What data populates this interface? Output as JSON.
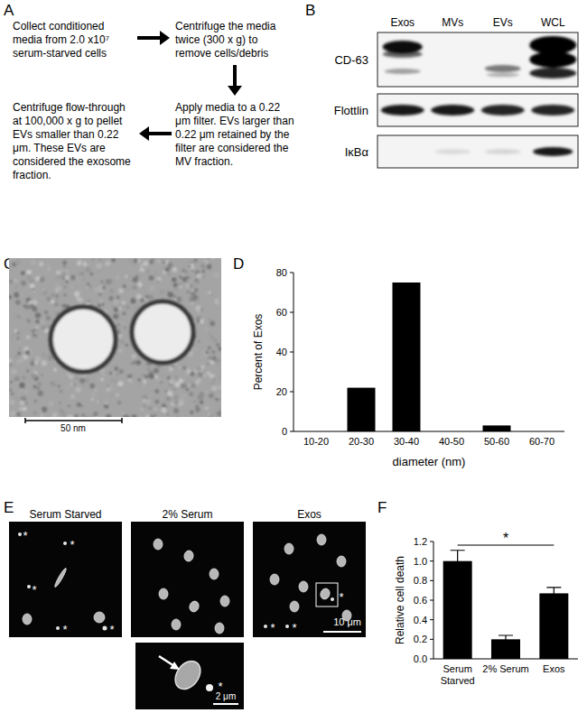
{
  "panel_labels": [
    "A",
    "B",
    "C",
    "D",
    "E",
    "F"
  ],
  "flowchart": {
    "steps": [
      "Collect conditioned media from 2.0 x10⁷ serum-starved cells",
      "Centrifuge the media twice (300 x g) to remove cells/debris",
      "Apply media to a 0.22 μm filter. EVs larger than 0.22 μm retained by the filter are considered the MV fraction.",
      "Centrifuge flow-through at 100,000 x g to pellet EVs smaller than 0.22 μm. These EVs are considered the exosome fraction."
    ]
  },
  "western_blot": {
    "lanes": [
      "Exos",
      "MVs",
      "EVs",
      "WCL"
    ],
    "rows": [
      "CD-63",
      "Flottlin",
      "IκBα"
    ]
  },
  "electron_micrograph": {
    "scale_bar": "50 nm"
  },
  "microscopy": {
    "images": [
      {
        "title": "Serum Starved",
        "asterisks": [
          "*",
          "*",
          "*",
          "*",
          "*"
        ]
      },
      {
        "title": "2% Serum"
      },
      {
        "title": "Exos",
        "asterisks": [
          "*",
          "*",
          "*"
        ],
        "scale_bar": "10 μm"
      }
    ],
    "inset": {
      "asterisks": [
        "*"
      ],
      "scale_bar": "2 μm"
    }
  },
  "chart_data": [
    {
      "type": "bar",
      "categories": [
        "10-20",
        "20-30",
        "30-40",
        "40-50",
        "50-60",
        "60-70"
      ],
      "values": [
        0,
        22,
        75,
        0,
        3,
        0
      ],
      "color": "#000000",
      "ylim": [
        0,
        80
      ],
      "yticks": [
        0,
        20,
        40,
        60,
        80
      ],
      "grid": false,
      "y_label": "Percent of Exos",
      "x_label": "diameter (nm)"
    },
    {
      "type": "bar",
      "categories": [
        "Serum Starved",
        "2% Serum",
        "Exos"
      ],
      "values": [
        1.0,
        0.2,
        0.67
      ],
      "errors": [
        0.11,
        0.04,
        0.06
      ],
      "color": "#000000",
      "ylim": [
        0,
        1.2
      ],
      "yticks": [
        {
          "value": 0,
          "label": "0.0"
        },
        0.2,
        0.4,
        0.6,
        0.8,
        {
          "value": 1,
          "label": "1.0"
        },
        1.2
      ],
      "grid": false,
      "y_label": "Relative cell death",
      "annotations": [
        {
          "text": "*",
          "categories": [
            "Serum Starved",
            "Exos"
          ]
        }
      ]
    }
  ]
}
